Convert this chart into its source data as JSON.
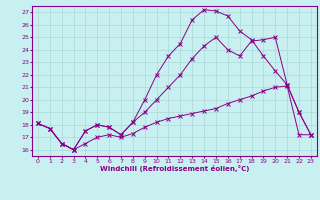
{
  "xlabel": "Windchill (Refroidissement éolien,°C)",
  "bg_color": "#c8f0f0",
  "line_color": "#880088",
  "grid_color": "#aad8d8",
  "xlim": [
    -0.5,
    23.5
  ],
  "ylim": [
    15.5,
    27.5
  ],
  "xticks": [
    0,
    1,
    2,
    3,
    4,
    5,
    6,
    7,
    8,
    9,
    10,
    11,
    12,
    13,
    14,
    15,
    16,
    17,
    18,
    19,
    20,
    21,
    22,
    23
  ],
  "yticks": [
    16,
    17,
    18,
    19,
    20,
    21,
    22,
    23,
    24,
    25,
    26,
    27
  ],
  "line1_x": [
    0,
    1,
    2,
    3,
    4,
    5,
    6,
    7,
    8,
    9,
    10,
    11,
    12,
    13,
    14,
    15,
    16,
    17,
    18,
    19,
    20,
    21,
    22,
    23
  ],
  "line1_y": [
    18.1,
    17.7,
    16.5,
    16.0,
    16.5,
    17.0,
    17.2,
    17.0,
    17.3,
    17.8,
    18.2,
    18.5,
    18.7,
    18.9,
    19.1,
    19.3,
    19.7,
    20.0,
    20.3,
    20.7,
    21.0,
    21.1,
    17.2,
    17.2
  ],
  "line2_x": [
    0,
    1,
    2,
    3,
    4,
    5,
    6,
    7,
    8,
    9,
    10,
    11,
    12,
    13,
    14,
    15,
    16,
    17,
    18,
    19,
    20,
    21,
    22,
    23
  ],
  "line2_y": [
    18.1,
    17.7,
    16.5,
    16.0,
    17.5,
    18.0,
    17.8,
    17.2,
    18.2,
    19.0,
    20.0,
    21.0,
    22.0,
    23.3,
    24.3,
    25.0,
    24.0,
    23.5,
    24.7,
    24.8,
    25.0,
    21.2,
    19.0,
    17.2
  ],
  "line3_x": [
    0,
    1,
    2,
    3,
    4,
    5,
    6,
    7,
    8,
    9,
    10,
    11,
    12,
    13,
    14,
    15,
    16,
    17,
    18,
    19,
    20,
    21,
    22,
    23
  ],
  "line3_y": [
    18.1,
    17.7,
    16.5,
    16.0,
    17.5,
    18.0,
    17.8,
    17.2,
    18.2,
    20.0,
    22.0,
    23.5,
    24.5,
    26.4,
    27.2,
    27.1,
    26.7,
    25.5,
    24.8,
    23.5,
    22.3,
    21.2,
    19.0,
    17.2
  ]
}
